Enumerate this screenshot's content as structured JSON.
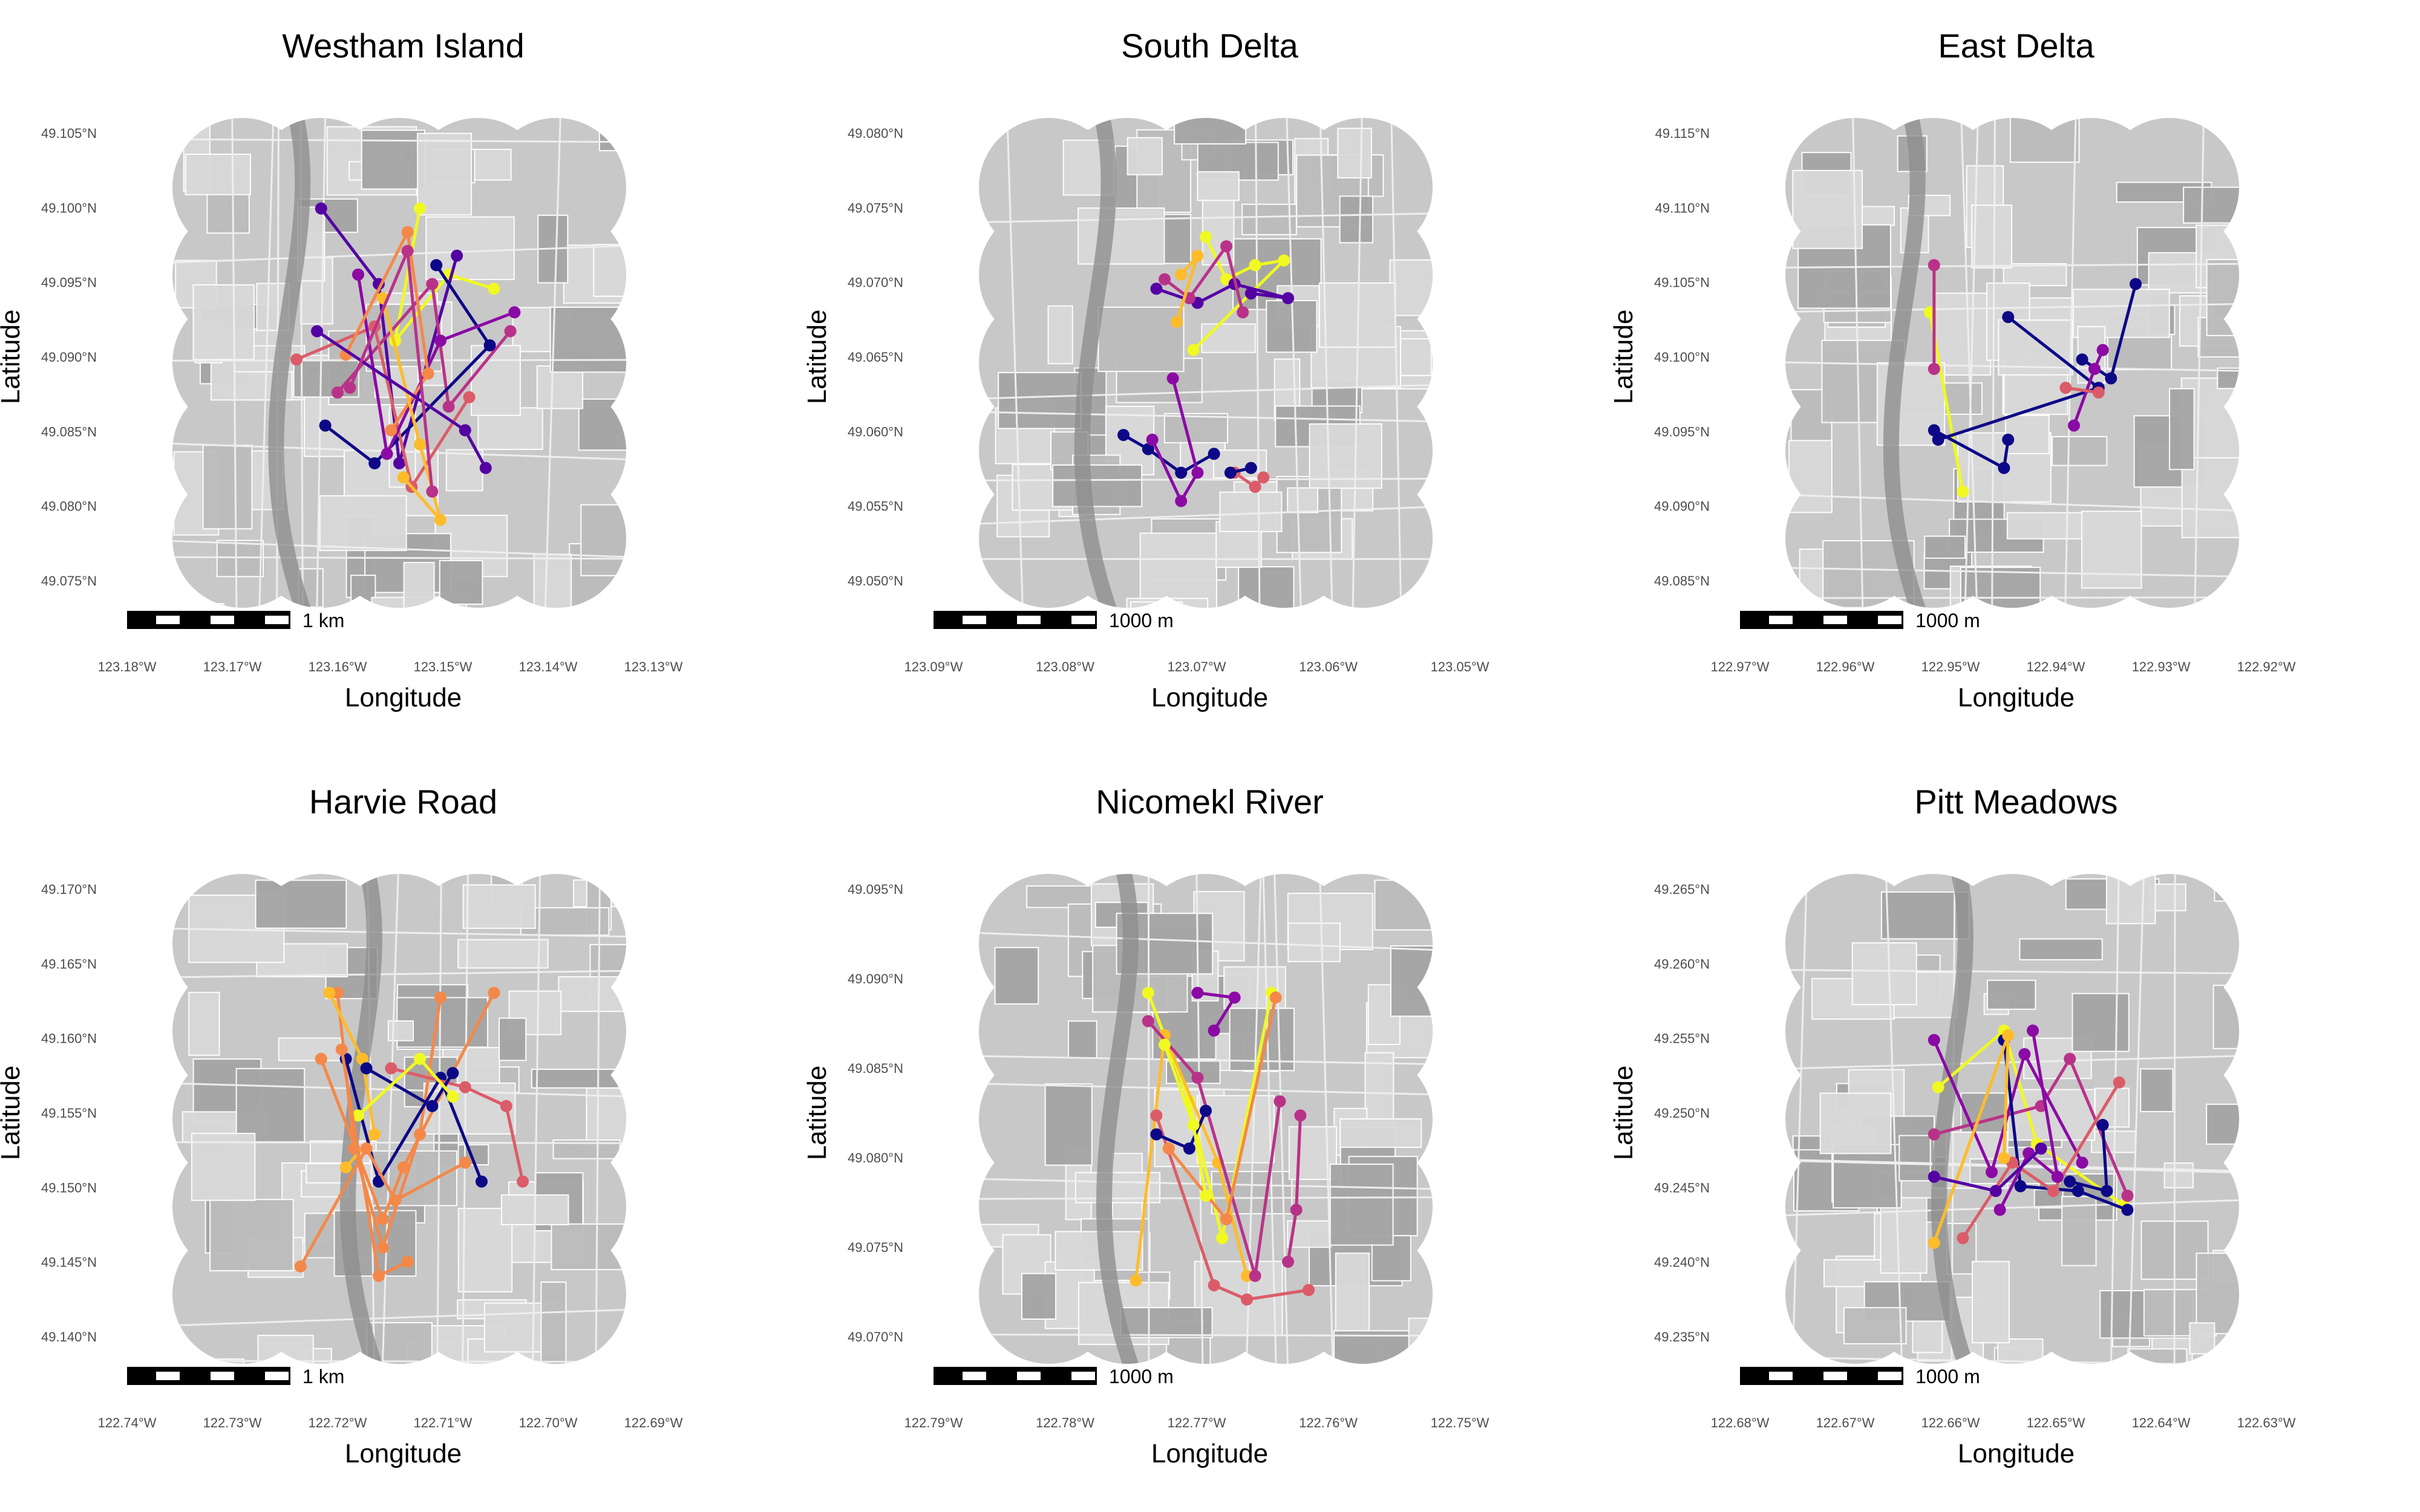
{
  "palette": [
    "#0d0887",
    "#5402a3",
    "#8b0aa5",
    "#b93289",
    "#db5c68",
    "#f48849",
    "#febc2a",
    "#f0f921"
  ],
  "map_colors": {
    "base": "#c8c8c8",
    "light": "#d9d9d9",
    "dark": "#a5a5a5",
    "line": "#ffffff"
  },
  "panels": [
    {
      "title": "Westham Island",
      "xlabel": "Longitude",
      "ylabel": "Latitude",
      "lat_ticks": [
        "49.105°N",
        "49.100°N",
        "49.095°N",
        "49.090°N",
        "49.085°N",
        "49.080°N",
        "49.075°N"
      ],
      "lon_ticks": [
        "123.18°W",
        "123.17°W",
        "123.16°W",
        "123.15°W",
        "123.14°W",
        "123.13°W"
      ],
      "scalebar_label": "1 km",
      "tracks": [
        {
          "color": 7,
          "points": [
            [
              0.55,
              0.16
            ],
            [
              0.49,
              0.44
            ],
            [
              0.62,
              0.3
            ],
            [
              0.73,
              0.33
            ]
          ]
        },
        {
          "color": 1,
          "points": [
            [
              0.31,
              0.16
            ],
            [
              0.45,
              0.32
            ],
            [
              0.5,
              0.7
            ],
            [
              0.64,
              0.26
            ]
          ]
        },
        {
          "color": 3,
          "points": [
            [
              0.35,
              0.55
            ],
            [
              0.58,
              0.32
            ],
            [
              0.62,
              0.58
            ],
            [
              0.77,
              0.42
            ]
          ]
        },
        {
          "color": 0,
          "points": [
            [
              0.32,
              0.62
            ],
            [
              0.44,
              0.7
            ],
            [
              0.72,
              0.45
            ],
            [
              0.59,
              0.28
            ]
          ]
        },
        {
          "color": 4,
          "points": [
            [
              0.25,
              0.48
            ],
            [
              0.44,
              0.41
            ],
            [
              0.53,
              0.75
            ],
            [
              0.67,
              0.56
            ]
          ]
        },
        {
          "color": 2,
          "points": [
            [
              0.4,
              0.3
            ],
            [
              0.47,
              0.68
            ],
            [
              0.6,
              0.44
            ],
            [
              0.78,
              0.38
            ]
          ]
        },
        {
          "color": 5,
          "points": [
            [
              0.37,
              0.47
            ],
            [
              0.52,
              0.21
            ],
            [
              0.57,
              0.51
            ],
            [
              0.48,
              0.63
            ]
          ]
        },
        {
          "color": 6,
          "points": [
            [
              0.46,
              0.35
            ],
            [
              0.55,
              0.66
            ],
            [
              0.6,
              0.82
            ],
            [
              0.51,
              0.73
            ]
          ]
        },
        {
          "color": 1,
          "points": [
            [
              0.3,
              0.42
            ],
            [
              0.66,
              0.63
            ],
            [
              0.71,
              0.71
            ]
          ]
        },
        {
          "color": 3,
          "points": [
            [
              0.38,
              0.54
            ],
            [
              0.52,
              0.25
            ],
            [
              0.58,
              0.76
            ]
          ]
        }
      ]
    },
    {
      "title": "South Delta",
      "xlabel": "Longitude",
      "ylabel": "Latitude",
      "lat_ticks": [
        "49.080°N",
        "49.075°N",
        "49.070°N",
        "49.065°N",
        "49.060°N",
        "49.055°N",
        "49.050°N"
      ],
      "lon_ticks": [
        "123.09°W",
        "123.08°W",
        "123.07°W",
        "123.06°W",
        "123.05°W"
      ],
      "scalebar_label": "1000 m",
      "tracks": [
        {
          "color": 7,
          "points": [
            [
              0.5,
              0.22
            ],
            [
              0.55,
              0.31
            ],
            [
              0.62,
              0.28
            ],
            [
              0.69,
              0.27
            ],
            [
              0.47,
              0.46
            ]
          ]
        },
        {
          "color": 1,
          "points": [
            [
              0.38,
              0.33
            ],
            [
              0.48,
              0.36
            ],
            [
              0.57,
              0.32
            ],
            [
              0.7,
              0.35
            ],
            [
              0.61,
              0.34
            ]
          ]
        },
        {
          "color": 3,
          "points": [
            [
              0.4,
              0.31
            ],
            [
              0.46,
              0.35
            ],
            [
              0.55,
              0.24
            ],
            [
              0.59,
              0.38
            ]
          ]
        },
        {
          "color": 0,
          "points": [
            [
              0.3,
              0.64
            ],
            [
              0.36,
              0.67
            ],
            [
              0.44,
              0.72
            ],
            [
              0.52,
              0.68
            ]
          ]
        },
        {
          "color": 2,
          "points": [
            [
              0.37,
              0.65
            ],
            [
              0.44,
              0.78
            ],
            [
              0.48,
              0.72
            ],
            [
              0.42,
              0.52
            ]
          ]
        },
        {
          "color": 4,
          "points": [
            [
              0.57,
              0.72
            ],
            [
              0.62,
              0.75
            ],
            [
              0.64,
              0.73
            ]
          ]
        },
        {
          "color": 6,
          "points": [
            [
              0.44,
              0.3
            ],
            [
              0.48,
              0.26
            ],
            [
              0.43,
              0.4
            ]
          ]
        },
        {
          "color": 0,
          "points": [
            [
              0.56,
              0.72
            ],
            [
              0.61,
              0.71
            ]
          ]
        }
      ]
    },
    {
      "title": "East Delta",
      "xlabel": "Longitude",
      "ylabel": "Latitude",
      "lat_ticks": [
        "49.115°N",
        "49.110°N",
        "49.105°N",
        "49.100°N",
        "49.095°N",
        "49.090°N",
        "49.085°N"
      ],
      "lon_ticks": [
        "122.97°W",
        "122.96°W",
        "122.95°W",
        "122.94°W",
        "122.93°W",
        "122.92°W"
      ],
      "scalebar_label": "1000 m",
      "tracks": [
        {
          "color": 7,
          "points": [
            [
              0.3,
              0.38
            ],
            [
              0.38,
              0.76
            ]
          ]
        },
        {
          "color": 3,
          "points": [
            [
              0.31,
              0.28
            ],
            [
              0.31,
              0.5
            ]
          ]
        },
        {
          "color": 0,
          "points": [
            [
              0.31,
              0.63
            ],
            [
              0.48,
              0.71
            ],
            [
              0.49,
              0.65
            ]
          ]
        },
        {
          "color": 0,
          "points": [
            [
              0.49,
              0.39
            ],
            [
              0.71,
              0.54
            ],
            [
              0.32,
              0.65
            ]
          ]
        },
        {
          "color": 0,
          "points": [
            [
              0.67,
              0.48
            ],
            [
              0.74,
              0.52
            ],
            [
              0.8,
              0.32
            ]
          ]
        },
        {
          "color": 2,
          "points": [
            [
              0.65,
              0.62
            ],
            [
              0.7,
              0.5
            ],
            [
              0.72,
              0.46
            ]
          ]
        },
        {
          "color": 4,
          "points": [
            [
              0.63,
              0.54
            ],
            [
              0.71,
              0.55
            ]
          ]
        }
      ]
    },
    {
      "title": "Harvie Road",
      "xlabel": "Longitude",
      "ylabel": "Latitude",
      "lat_ticks": [
        "49.170°N",
        "49.165°N",
        "49.160°N",
        "49.155°N",
        "49.150°N",
        "49.145°N",
        "49.140°N"
      ],
      "lon_ticks": [
        "122.74°W",
        "122.73°W",
        "122.72°W",
        "122.71°W",
        "122.70°W",
        "122.69°W"
      ],
      "scalebar_label": "1 km",
      "tracks": [
        {
          "color": 5,
          "points": [
            [
              0.35,
              0.22
            ],
            [
              0.39,
              0.55
            ],
            [
              0.46,
              0.76
            ],
            [
              0.55,
              0.52
            ],
            [
              0.6,
              0.23
            ]
          ]
        },
        {
          "color": 6,
          "points": [
            [
              0.33,
              0.22
            ],
            [
              0.41,
              0.36
            ],
            [
              0.44,
              0.52
            ],
            [
              0.37,
              0.59
            ]
          ]
        },
        {
          "color": 5,
          "points": [
            [
              0.31,
              0.36
            ],
            [
              0.46,
              0.7
            ],
            [
              0.51,
              0.59
            ],
            [
              0.73,
              0.22
            ]
          ]
        },
        {
          "color": 0,
          "points": [
            [
              0.37,
              0.36
            ],
            [
              0.45,
              0.62
            ],
            [
              0.6,
              0.4
            ],
            [
              0.7,
              0.62
            ]
          ]
        },
        {
          "color": 4,
          "points": [
            [
              0.48,
              0.38
            ],
            [
              0.66,
              0.42
            ],
            [
              0.76,
              0.46
            ],
            [
              0.8,
              0.62
            ]
          ]
        },
        {
          "color": 5,
          "points": [
            [
              0.26,
              0.8
            ],
            [
              0.42,
              0.55
            ],
            [
              0.49,
              0.66
            ],
            [
              0.66,
              0.58
            ]
          ]
        },
        {
          "color": 0,
          "points": [
            [
              0.42,
              0.38
            ],
            [
              0.58,
              0.46
            ],
            [
              0.63,
              0.39
            ]
          ]
        },
        {
          "color": 7,
          "points": [
            [
              0.4,
              0.48
            ],
            [
              0.55,
              0.36
            ],
            [
              0.63,
              0.44
            ]
          ]
        },
        {
          "color": 5,
          "points": [
            [
              0.36,
              0.34
            ],
            [
              0.45,
              0.82
            ],
            [
              0.52,
              0.79
            ]
          ]
        }
      ]
    },
    {
      "title": "Nicomekl River",
      "xlabel": "Longitude",
      "ylabel": "Latitude",
      "lat_ticks": [
        "49.095°N",
        "49.090°N",
        "49.085°N",
        "49.080°N",
        "49.075°N",
        "49.070°N"
      ],
      "lon_ticks": [
        "122.79°W",
        "122.78°W",
        "122.77°W",
        "122.76°W",
        "122.75°W"
      ],
      "scalebar_label": "1000 m",
      "tracks": [
        {
          "color": 7,
          "points": [
            [
              0.36,
              0.22
            ],
            [
              0.46,
              0.45
            ],
            [
              0.54,
              0.74
            ],
            [
              0.66,
              0.22
            ]
          ]
        },
        {
          "color": 6,
          "points": [
            [
              0.33,
              0.83
            ],
            [
              0.4,
              0.31
            ],
            [
              0.53,
              0.58
            ],
            [
              0.6,
              0.82
            ]
          ]
        },
        {
          "color": 4,
          "points": [
            [
              0.38,
              0.48
            ],
            [
              0.52,
              0.84
            ],
            [
              0.6,
              0.87
            ],
            [
              0.75,
              0.85
            ]
          ]
        },
        {
          "color": 3,
          "points": [
            [
              0.36,
              0.28
            ],
            [
              0.48,
              0.4
            ],
            [
              0.62,
              0.82
            ],
            [
              0.68,
              0.45
            ]
          ]
        },
        {
          "color": 5,
          "points": [
            [
              0.41,
              0.55
            ],
            [
              0.55,
              0.7
            ],
            [
              0.67,
              0.23
            ]
          ]
        },
        {
          "color": 0,
          "points": [
            [
              0.38,
              0.52
            ],
            [
              0.46,
              0.55
            ],
            [
              0.5,
              0.47
            ]
          ]
        },
        {
          "color": 2,
          "points": [
            [
              0.48,
              0.22
            ],
            [
              0.57,
              0.23
            ],
            [
              0.52,
              0.3
            ]
          ]
        },
        {
          "color": 3,
          "points": [
            [
              0.73,
              0.48
            ],
            [
              0.72,
              0.68
            ],
            [
              0.7,
              0.79
            ]
          ]
        },
        {
          "color": 7,
          "points": [
            [
              0.4,
              0.33
            ],
            [
              0.47,
              0.5
            ],
            [
              0.5,
              0.65
            ]
          ]
        }
      ]
    },
    {
      "title": "Pitt Meadows",
      "xlabel": "Longitude",
      "ylabel": "Latitude",
      "lat_ticks": [
        "49.265°N",
        "49.260°N",
        "49.255°N",
        "49.250°N",
        "49.245°N",
        "49.240°N",
        "49.235°N"
      ],
      "lon_ticks": [
        "122.68°W",
        "122.67°W",
        "122.66°W",
        "122.65°W",
        "122.64°W",
        "122.63°W"
      ],
      "scalebar_label": "1000 m",
      "tracks": [
        {
          "color": 7,
          "points": [
            [
              0.32,
              0.42
            ],
            [
              0.48,
              0.3
            ],
            [
              0.56,
              0.54
            ],
            [
              0.77,
              0.67
            ]
          ]
        },
        {
          "color": 3,
          "points": [
            [
              0.31,
              0.52
            ],
            [
              0.57,
              0.46
            ],
            [
              0.64,
              0.36
            ],
            [
              0.78,
              0.65
            ]
          ]
        },
        {
          "color": 2,
          "points": [
            [
              0.31,
              0.32
            ],
            [
              0.45,
              0.6
            ],
            [
              0.53,
              0.35
            ],
            [
              0.67,
              0.58
            ]
          ]
        },
        {
          "color": 0,
          "points": [
            [
              0.48,
              0.32
            ],
            [
              0.52,
              0.63
            ],
            [
              0.66,
              0.64
            ],
            [
              0.78,
              0.68
            ]
          ]
        },
        {
          "color": 4,
          "points": [
            [
              0.38,
              0.74
            ],
            [
              0.5,
              0.58
            ],
            [
              0.6,
              0.64
            ],
            [
              0.76,
              0.41
            ]
          ]
        },
        {
          "color": 6,
          "points": [
            [
              0.31,
              0.75
            ],
            [
              0.49,
              0.31
            ],
            [
              0.48,
              0.57
            ]
          ]
        },
        {
          "color": 2,
          "points": [
            [
              0.47,
              0.68
            ],
            [
              0.54,
              0.56
            ],
            [
              0.61,
              0.61
            ],
            [
              0.55,
              0.3
            ]
          ]
        },
        {
          "color": 0,
          "points": [
            [
              0.72,
              0.5
            ],
            [
              0.73,
              0.64
            ],
            [
              0.64,
              0.62
            ]
          ]
        },
        {
          "color": 1,
          "points": [
            [
              0.31,
              0.61
            ],
            [
              0.46,
              0.64
            ],
            [
              0.57,
              0.55
            ]
          ]
        }
      ]
    }
  ]
}
